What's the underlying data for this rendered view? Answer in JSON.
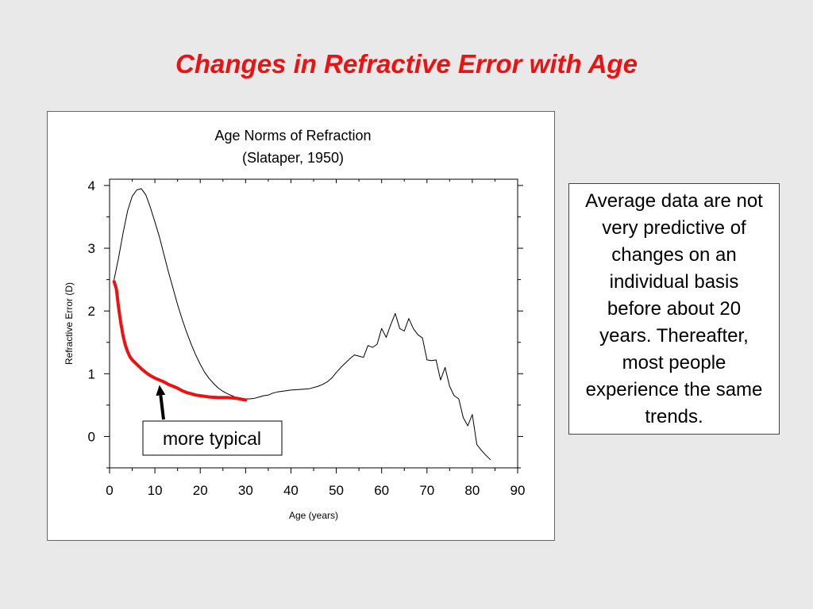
{
  "slide": {
    "title": "Changes in Refractive Error with Age",
    "note": "Average data are not very predictive of changes on an individual basis before about 20 years. Thereafter, most people experience the same trends.",
    "title_color": "#ee1111",
    "background": "#e9e9e9"
  },
  "chart_data": {
    "type": "line",
    "title": "Age Norms of Refraction",
    "subtitle": "(Slataper, 1950)",
    "xlabel": "Age (years)",
    "ylabel": "Refractive Error (D)",
    "xlim": [
      0,
      90
    ],
    "ylim": [
      -0.5,
      4.1
    ],
    "xticks": [
      0,
      10,
      20,
      30,
      40,
      50,
      60,
      70,
      80,
      90
    ],
    "yticks": [
      0,
      1,
      2,
      3,
      4
    ],
    "grid": false,
    "series": [
      {
        "color": "#000000",
        "x": [
          1,
          2,
          3,
          4,
          5,
          6,
          7,
          8,
          9,
          10,
          11,
          12,
          13,
          14,
          15,
          16,
          17,
          18,
          19,
          20,
          21,
          22,
          23,
          24,
          25,
          26,
          27,
          28,
          29,
          30,
          31,
          32,
          33,
          34,
          35,
          36,
          37,
          38,
          40,
          42,
          44,
          46,
          47,
          48,
          49,
          50,
          51,
          52,
          53,
          54,
          55,
          56,
          57,
          58,
          59,
          60,
          61,
          62,
          63,
          64,
          65,
          66,
          67,
          68,
          69,
          70,
          71,
          72,
          73,
          74,
          75,
          76,
          77,
          78,
          79,
          80,
          81,
          82,
          83,
          84
        ],
        "y": [
          2.5,
          2.85,
          3.25,
          3.6,
          3.83,
          3.93,
          3.95,
          3.85,
          3.65,
          3.42,
          3.18,
          2.9,
          2.62,
          2.36,
          2.1,
          1.87,
          1.66,
          1.47,
          1.3,
          1.15,
          1.02,
          0.92,
          0.84,
          0.77,
          0.72,
          0.68,
          0.65,
          0.62,
          0.61,
          0.6,
          0.6,
          0.61,
          0.63,
          0.65,
          0.66,
          0.69,
          0.71,
          0.72,
          0.74,
          0.75,
          0.76,
          0.8,
          0.83,
          0.87,
          0.93,
          1.02,
          1.1,
          1.17,
          1.24,
          1.3,
          1.28,
          1.26,
          1.45,
          1.42,
          1.47,
          1.72,
          1.58,
          1.78,
          1.96,
          1.72,
          1.68,
          1.88,
          1.72,
          1.62,
          1.57,
          1.22,
          1.21,
          1.22,
          0.9,
          1.1,
          0.8,
          0.65,
          0.6,
          0.3,
          0.17,
          0.35,
          -0.13,
          -0.22,
          -0.3,
          -0.37
        ]
      },
      {
        "name": "more typical",
        "color": "#ee1111",
        "x": [
          1,
          1.5,
          2,
          2.5,
          3,
          3.5,
          4,
          4.5,
          5,
          6,
          7,
          8,
          9,
          10,
          11,
          12,
          13,
          14,
          15,
          16,
          17,
          18,
          19,
          20,
          22,
          24,
          26,
          28,
          30
        ],
        "y": [
          2.47,
          2.35,
          2.05,
          1.8,
          1.6,
          1.45,
          1.35,
          1.27,
          1.22,
          1.15,
          1.08,
          1.02,
          0.97,
          0.93,
          0.9,
          0.87,
          0.83,
          0.8,
          0.77,
          0.73,
          0.7,
          0.68,
          0.66,
          0.65,
          0.63,
          0.62,
          0.62,
          0.61,
          0.58
        ]
      }
    ],
    "annotations": [
      {
        "text": "more typical",
        "arrow_to": [
          11,
          0.82
        ]
      }
    ]
  }
}
